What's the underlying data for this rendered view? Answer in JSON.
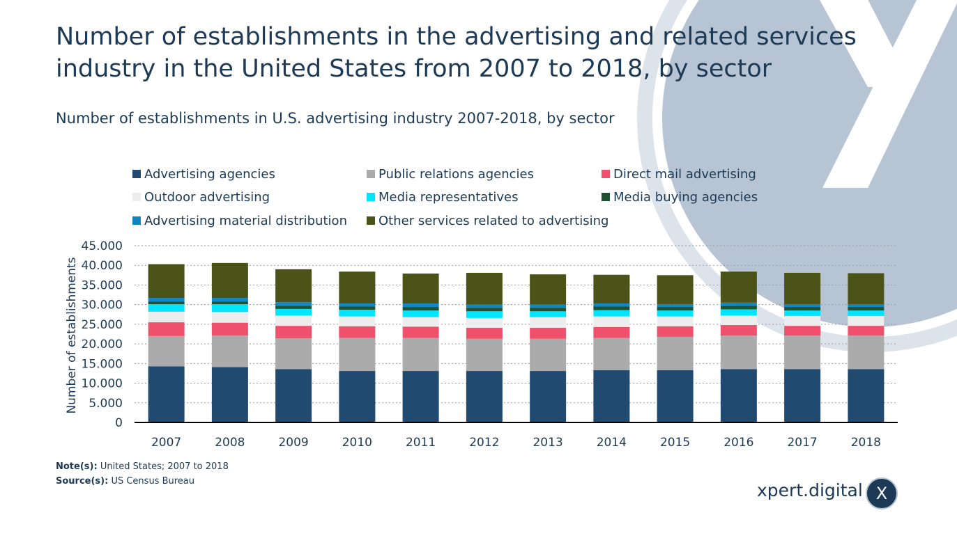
{
  "title": "Number of establishments in the advertising and related services industry in the United States from 2007 to 2018, by sector",
  "subtitle": "Number of establishments in U.S. advertising industry 2007-2018, by sector",
  "notes": {
    "note_label": "Note(s):",
    "note_text": "United States; 2007 to 2018",
    "source_label": "Source(s):",
    "source_text": "US Census Bureau"
  },
  "brand": {
    "name": "xpert.digital",
    "badge_letter": "X"
  },
  "colors": {
    "background_deco": "#b7c4d3",
    "axis": "#000000",
    "grid": "#9a9a9a"
  },
  "chart_data": {
    "type": "bar",
    "stacked": true,
    "title": "Number of establishments in U.S. advertising industry 2007-2018, by sector",
    "xlabel": "",
    "ylabel": "Number of establishments",
    "ylim": [
      0,
      45000
    ],
    "yticks": [
      0,
      5000,
      10000,
      15000,
      20000,
      25000,
      30000,
      35000,
      40000,
      45000
    ],
    "ytick_labels": [
      "0",
      "5.000",
      "10.000",
      "15.000",
      "20.000",
      "25.000",
      "30.000",
      "35.000",
      "40.000",
      "45.000"
    ],
    "grid": true,
    "legend_position": "top",
    "categories": [
      "2007",
      "2008",
      "2009",
      "2010",
      "2011",
      "2012",
      "2013",
      "2014",
      "2015",
      "2016",
      "2017",
      "2018"
    ],
    "series": [
      {
        "name": "Advertising agencies",
        "color": "#214a70",
        "values": [
          14300,
          14100,
          13600,
          13100,
          13100,
          13100,
          13100,
          13300,
          13300,
          13600,
          13600,
          13600
        ]
      },
      {
        "name": "Public relations agencies",
        "color": "#ababab",
        "values": [
          7700,
          8000,
          7800,
          8400,
          8400,
          8200,
          8200,
          8200,
          8500,
          8500,
          8500,
          8500
        ]
      },
      {
        "name": "Direct mail advertising",
        "color": "#ef506c",
        "values": [
          3500,
          3300,
          3200,
          3000,
          2900,
          2800,
          2800,
          2800,
          2700,
          2700,
          2500,
          2500
        ]
      },
      {
        "name": "Outdoor advertising",
        "color": "#ededed",
        "values": [
          2700,
          2700,
          2600,
          2500,
          2400,
          2500,
          2700,
          2700,
          2500,
          2400,
          2500,
          2500
        ]
      },
      {
        "name": "Media representatives",
        "color": "#00e5ff",
        "values": [
          1900,
          2000,
          1700,
          1700,
          1700,
          1700,
          1500,
          1600,
          1500,
          1600,
          1400,
          1400
        ]
      },
      {
        "name": "Media buying agencies",
        "color": "#1f5233",
        "values": [
          700,
          700,
          800,
          800,
          900,
          900,
          900,
          900,
          900,
          900,
          900,
          900
        ]
      },
      {
        "name": "Advertising material distribution",
        "color": "#1086c2",
        "values": [
          900,
          900,
          900,
          800,
          900,
          800,
          800,
          800,
          700,
          800,
          700,
          700
        ]
      },
      {
        "name": "Other services related to advertising",
        "color": "#4b5319",
        "values": [
          8600,
          8900,
          8400,
          8100,
          7600,
          8100,
          7700,
          7300,
          7400,
          7900,
          8000,
          7900
        ]
      }
    ]
  }
}
